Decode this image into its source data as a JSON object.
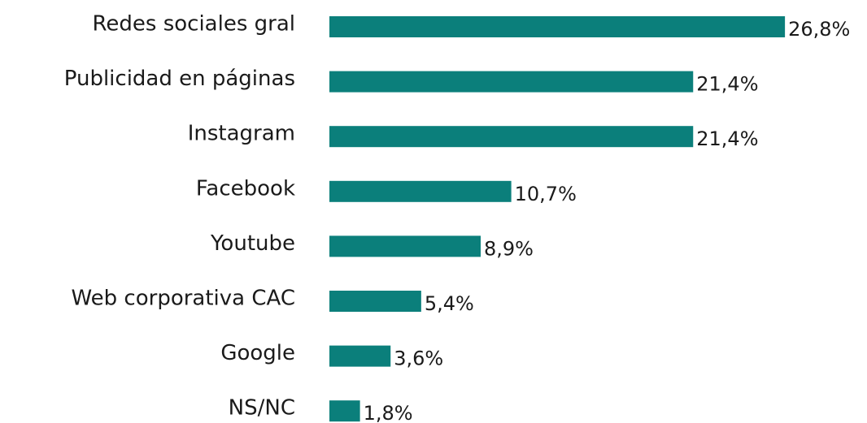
{
  "chart_data": {
    "type": "bar",
    "orientation": "horizontal",
    "categories": [
      "Redes sociales gral",
      "Publicidad en páginas",
      "Instagram",
      "Facebook",
      "Youtube",
      "Web corporativa CAC",
      "Google",
      "NS/NC"
    ],
    "values": [
      26.8,
      21.4,
      21.4,
      10.7,
      8.9,
      5.4,
      3.6,
      1.8
    ],
    "value_labels": [
      "26,8%",
      "21,4%",
      "21,4%",
      "10,7%",
      "8,9%",
      "5,4%",
      "3,6%",
      "1,8%"
    ],
    "color": "#0b7f7b"
  }
}
